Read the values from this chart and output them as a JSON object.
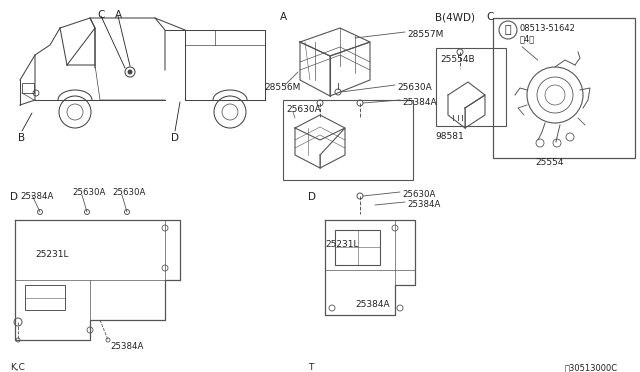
{
  "bg_color": "#f5f5f5",
  "line_color": "#555555",
  "text_color": "#222222",
  "fig_width": 6.4,
  "fig_height": 3.72,
  "dpi": 100,
  "labels": {
    "truck_C": "C",
    "truck_A": "A",
    "truck_B": "B",
    "truck_D": "D",
    "sec_A": "A",
    "sec_B": "B【4WD】",
    "sec_B2": "B(4WD)",
    "sec_C": "C",
    "sec_D1": "D",
    "sec_D2": "D",
    "part28557M": "28557M",
    "part25630A_a": "25630A",
    "part28556M": "28556M",
    "part25630A_b": "25630A",
    "part25384A_a": "25384A",
    "part25554B": "25554B",
    "part98581": "98581",
    "part08513": "08513-51642",
    "part4": "（4）",
    "part25554": "25554",
    "partD1_25384A": "25384A",
    "partD1_25630A_1": "25630A",
    "partD1_25630A_2": "25630A",
    "partD1_25231L": "25231L",
    "partD1_25384A_b": "25384A",
    "partD2_25630A": "25630A",
    "partD2_25384A_1": "25384A",
    "partD2_25231L": "25231L",
    "partD2_25384A_2": "25384A",
    "label_KC": "K,C",
    "label_T": "T",
    "label_partnum": "⦕30513000C"
  }
}
